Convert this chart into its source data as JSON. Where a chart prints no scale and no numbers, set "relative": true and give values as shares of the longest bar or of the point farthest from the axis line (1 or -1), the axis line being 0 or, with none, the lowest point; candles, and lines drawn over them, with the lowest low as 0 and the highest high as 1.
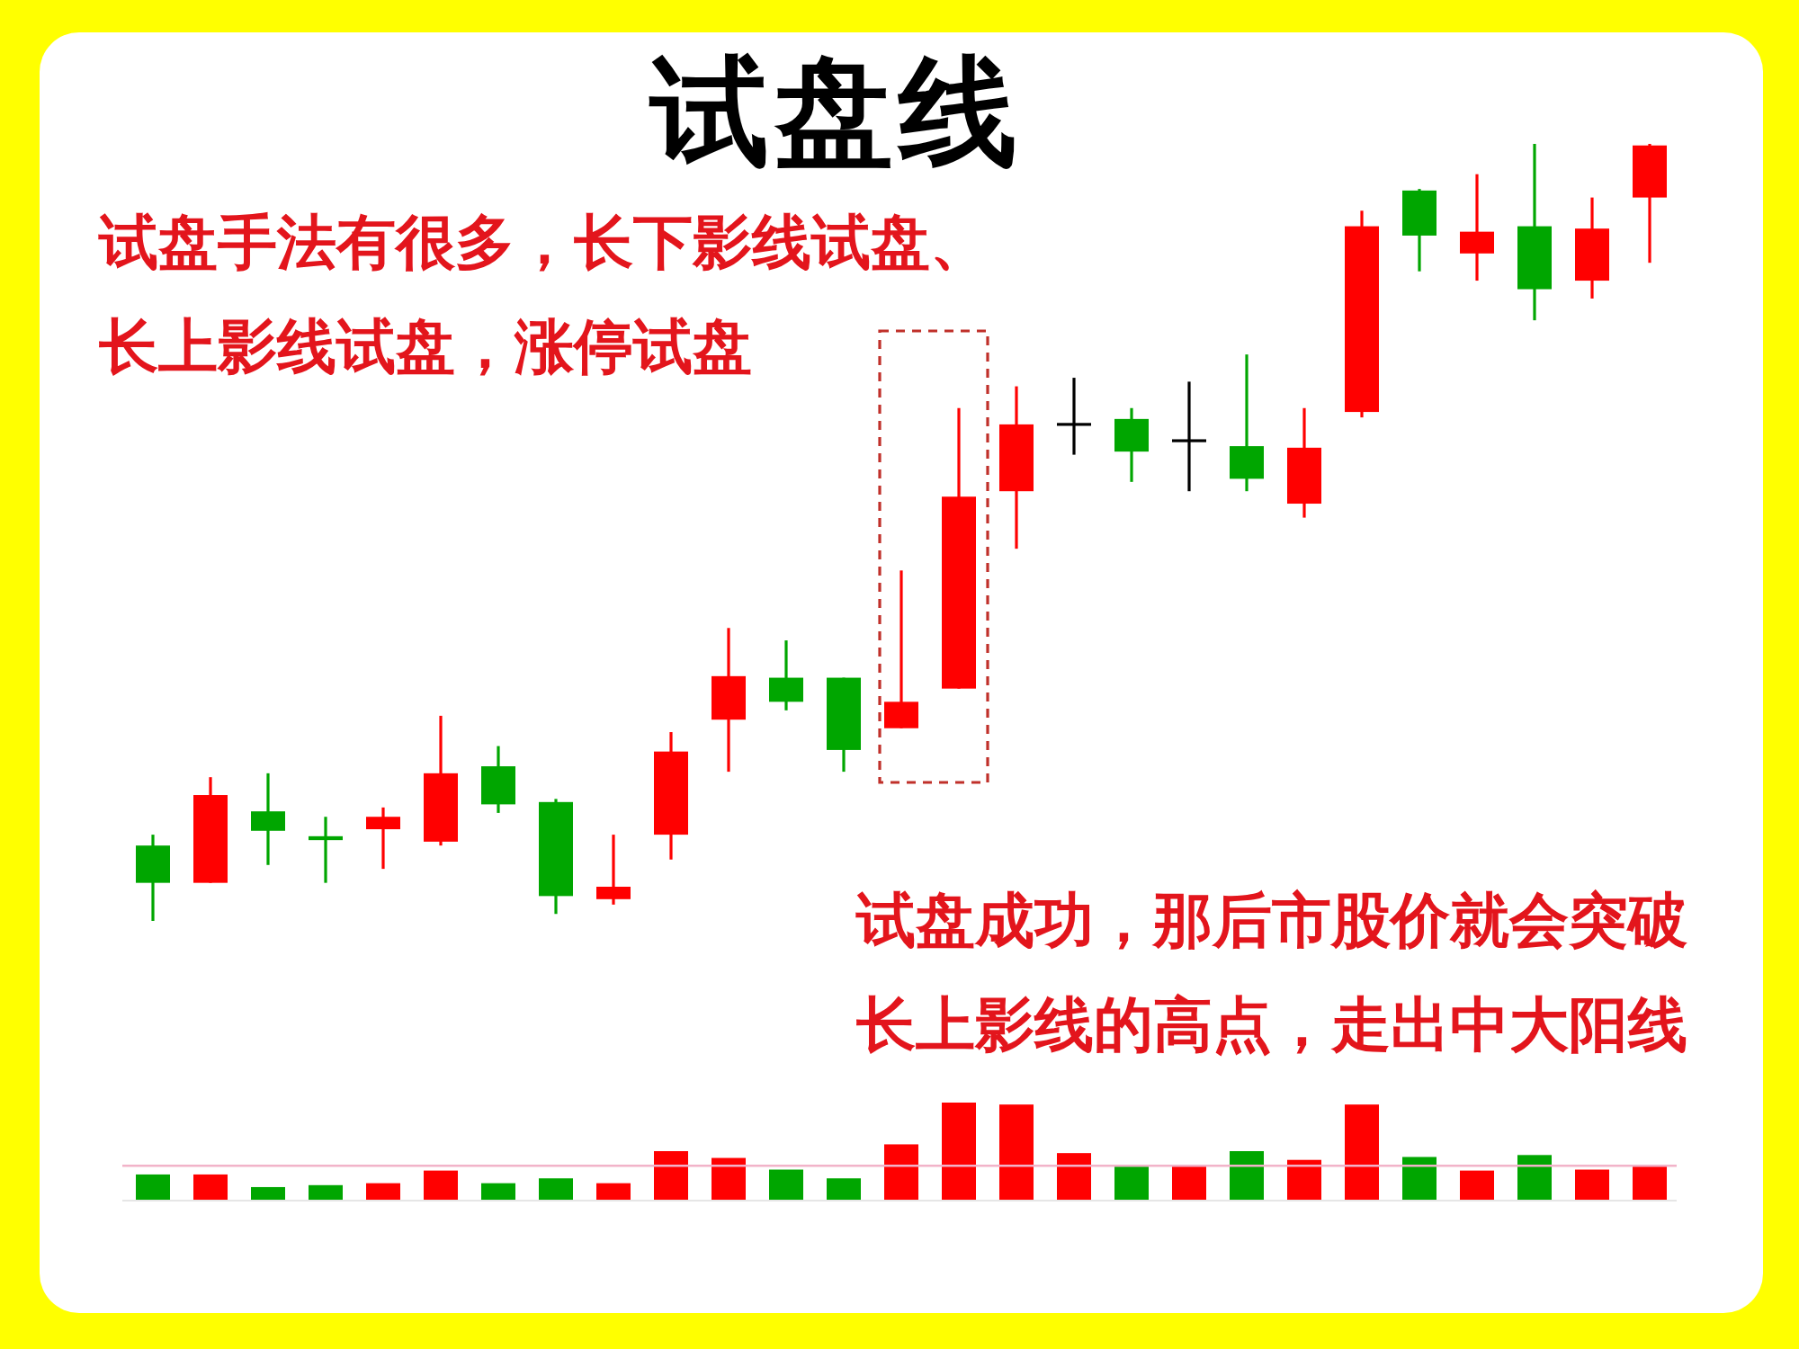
{
  "chart_data": [
    {
      "type": "candlestick",
      "title": "试盘线",
      "annotations": [
        "试盘手法有很多，长下影线试盘、长上影线试盘，涨停试盘",
        "试盘成功，那后市股价就会突破长上影线的高点，走出中大阳线"
      ],
      "relative": true,
      "categories": [
        null,
        null,
        null,
        null,
        null,
        null,
        null,
        null,
        null,
        null,
        null,
        null,
        null,
        null,
        null,
        null,
        null,
        null,
        null,
        null,
        null,
        null,
        null,
        null,
        null,
        null,
        null
      ],
      "ohlc": [
        [
          0.097,
          0.111,
          0,
          0.049
        ],
        [
          0.049,
          0.185,
          0.049,
          0.162
        ],
        [
          0.141,
          0.19,
          0.072,
          0.116
        ],
        [
          0.109,
          0.134,
          0.049,
          0.104
        ],
        [
          0.118,
          0.146,
          0.067,
          0.134
        ],
        [
          0.102,
          0.264,
          0.097,
          0.19
        ],
        [
          0.199,
          0.225,
          0.139,
          0.15
        ],
        [
          0.153,
          0.157,
          0.009,
          0.032
        ],
        [
          0.028,
          0.111,
          0.021,
          0.044
        ],
        [
          0.111,
          0.243,
          0.079,
          0.218
        ],
        [
          0.259,
          0.377,
          0.192,
          0.315
        ],
        [
          0.313,
          0.361,
          0.271,
          0.282
        ],
        [
          0.313,
          0.313,
          0.192,
          0.22
        ],
        [
          0.248,
          0.451,
          0.248,
          0.282
        ],
        [
          0.299,
          0.66,
          0.299,
          0.546
        ],
        [
          0.553,
          0.688,
          0.479,
          0.639
        ],
        [
          0.639,
          0.699,
          0.6,
          0.639
        ],
        [
          0.646,
          0.66,
          0.565,
          0.604
        ],
        [
          0.618,
          0.694,
          0.553,
          0.618
        ],
        [
          0.611,
          0.729,
          0.553,
          0.569
        ],
        [
          0.537,
          0.66,
          0.519,
          0.609
        ],
        [
          0.655,
          0.914,
          0.648,
          0.894
        ],
        [
          0.94,
          0.942,
          0.836,
          0.882
        ],
        [
          0.859,
          0.961,
          0.824,
          0.887
        ],
        [
          0.894,
          1,
          0.773,
          0.813
        ],
        [
          0.824,
          0.931,
          0.801,
          0.891
        ],
        [
          0.931,
          1,
          0.847,
          0.998
        ]
      ],
      "colors": [
        "#00a600",
        "#ff0000",
        "#00a600",
        "#00a600",
        "#ff0000",
        "#ff0000",
        "#00a600",
        "#00a600",
        "#ff0000",
        "#ff0000",
        "#ff0000",
        "#00a600",
        "#00a600",
        "#ff0000",
        "#ff0000",
        "#ff0000",
        "#000000",
        "#00a600",
        "#000000",
        "#00a600",
        "#ff0000",
        "#ff0000",
        "#00a600",
        "#ff0000",
        "#00a600",
        "#ff0000",
        "#ff0000"
      ]
    },
    {
      "type": "bar",
      "relative": true,
      "categories": [
        null,
        null,
        null,
        null,
        null,
        null,
        null,
        null,
        null,
        null,
        null,
        null,
        null,
        null,
        null,
        null,
        null,
        null,
        null,
        null,
        null,
        null,
        null,
        null,
        null,
        null,
        null
      ],
      "values": [
        0.26,
        0.26,
        0.13,
        0.15,
        0.17,
        0.3,
        0.17,
        0.22,
        0.17,
        0.5,
        0.43,
        0.31,
        0.22,
        0.57,
        1,
        0.98,
        0.48,
        0.35,
        0.35,
        0.5,
        0.41,
        0.98,
        0.44,
        0.3,
        0.46,
        0.31,
        0.35
      ],
      "colors": [
        "#00a600",
        "#ff0000",
        "#00a600",
        "#00a600",
        "#ff0000",
        "#ff0000",
        "#00a600",
        "#00a600",
        "#ff0000",
        "#ff0000",
        "#ff0000",
        "#00a600",
        "#00a600",
        "#ff0000",
        "#ff0000",
        "#ff0000",
        "#ff0000",
        "#00a600",
        "#ff0000",
        "#00a600",
        "#ff0000",
        "#ff0000",
        "#00a600",
        "#ff0000",
        "#00a600",
        "#ff0000",
        "#ff0000"
      ],
      "ref_lines": [
        {
          "axis": "y",
          "value": 0.35,
          "color": "#f2b3c9"
        }
      ]
    }
  ]
}
